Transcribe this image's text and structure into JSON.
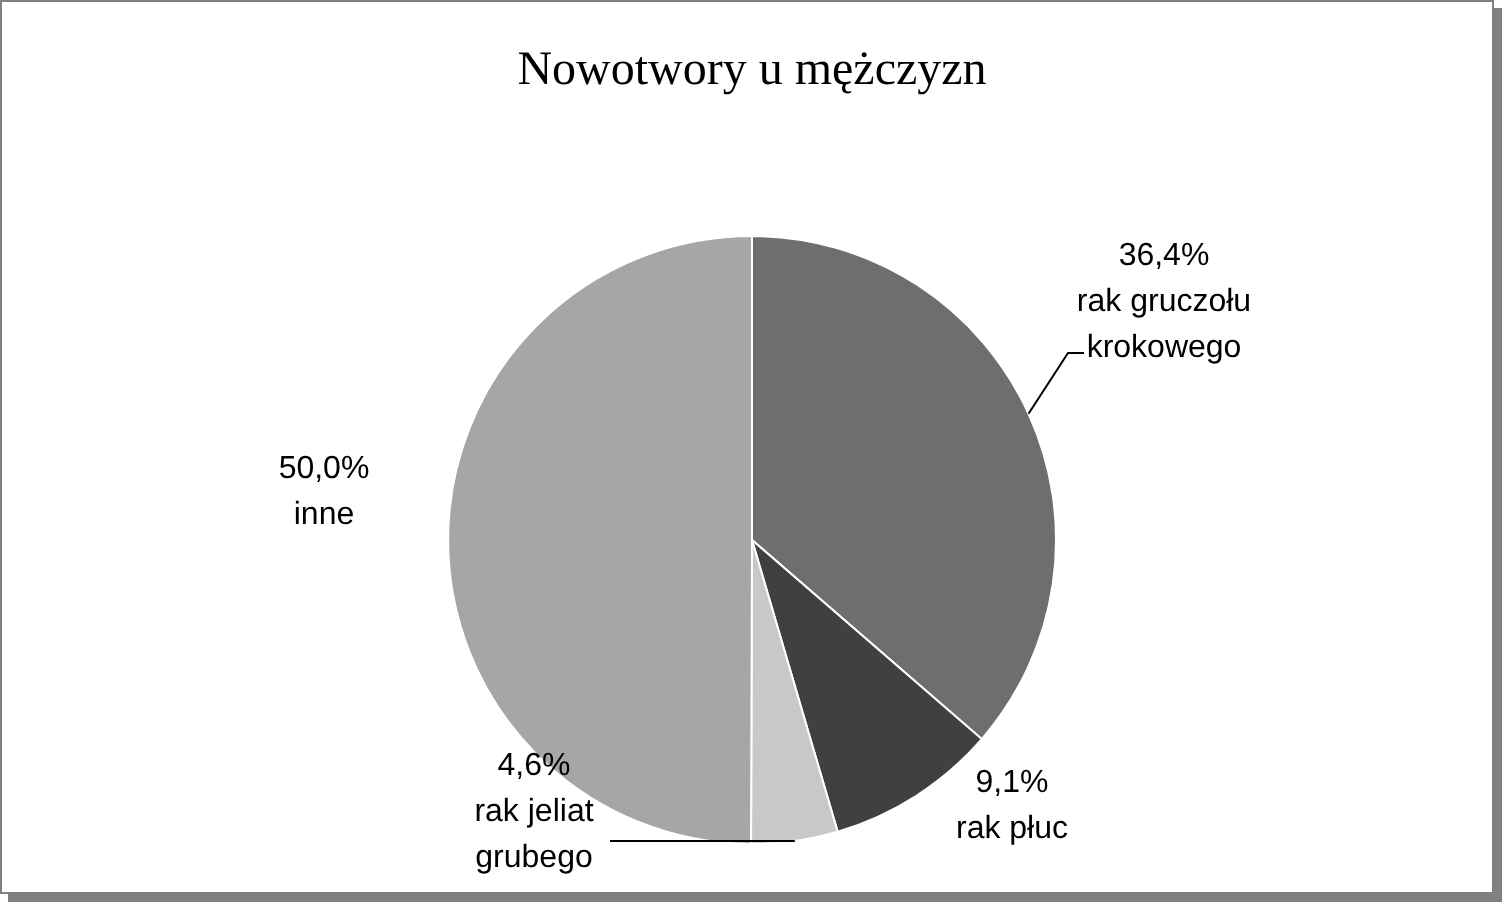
{
  "chart_data": {
    "type": "pie",
    "title": "Nowotwory u mężczyzn",
    "categories": [
      "rak gruczołu krokowego",
      "rak płuc",
      "rak jeliat grubego",
      "inne"
    ],
    "values": [
      36.4,
      9.1,
      4.6,
      50.0
    ],
    "value_labels": [
      "36,4%",
      "9,1%",
      "4,6%",
      "50,0%"
    ],
    "colors": [
      "#6e6e6e",
      "#404040",
      "#c8c8c8",
      "#a6a6a6"
    ],
    "legend": false
  }
}
